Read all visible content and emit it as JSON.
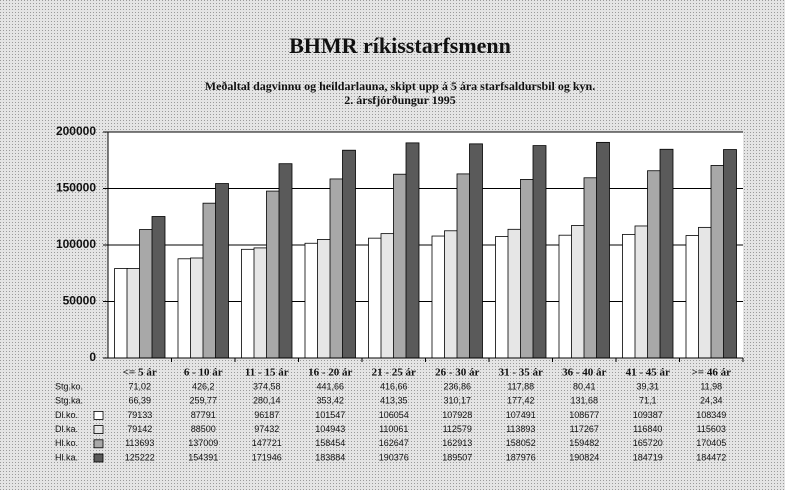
{
  "chart_data": {
    "type": "bar",
    "title": "BHMR ríkisstarfsmenn",
    "subtitle": [
      "Meðaltal dagvinnu og heildarlauna, skipt upp á 5 ára starfsaldursbil og kyn.",
      "2. ársfjórðungur 1995"
    ],
    "categories": [
      "<= 5 ár",
      "6 - 10 ár",
      "11 - 15 ár",
      "16 - 20 ár",
      "21 - 25 ár",
      "26 - 30 ár",
      "31 - 35 ár",
      "36 - 40 ár",
      "41 - 45 ár",
      ">= 46 ár"
    ],
    "table_rows": [
      {
        "name": "Stg.ko.",
        "values": [
          "71,02",
          "426,2",
          "374,58",
          "441,66",
          "416,66",
          "236,86",
          "117,88",
          "80,41",
          "39,31",
          "11,98"
        ]
      },
      {
        "name": "Stg.ka.",
        "values": [
          "66,39",
          "259,77",
          "280,14",
          "353,42",
          "413,35",
          "310,17",
          "177,42",
          "131,68",
          "71,1",
          "24,34"
        ]
      }
    ],
    "series": [
      {
        "name": "Dl.ko.",
        "color": "#ffffff",
        "values": [
          79133,
          87791,
          96187,
          101547,
          106054,
          107928,
          107491,
          108677,
          109387,
          108349
        ]
      },
      {
        "name": "Dl.ka.",
        "color": "#e6e6e6",
        "values": [
          79142,
          88500,
          97432,
          104943,
          110061,
          112579,
          113893,
          117267,
          116840,
          115603
        ]
      },
      {
        "name": "Hl.ko.",
        "color": "#a8a8a8",
        "values": [
          113693,
          137009,
          147721,
          158454,
          162647,
          162913,
          158052,
          159482,
          165720,
          170405
        ]
      },
      {
        "name": "Hl.ka.",
        "color": "#5a5a5a",
        "values": [
          125222,
          154391,
          171946,
          183884,
          190376,
          189507,
          187976,
          190824,
          184719,
          184472
        ]
      }
    ],
    "ylim": [
      0,
      200000
    ],
    "yticks": [
      0,
      50000,
      100000,
      150000,
      200000
    ],
    "grid": true
  }
}
